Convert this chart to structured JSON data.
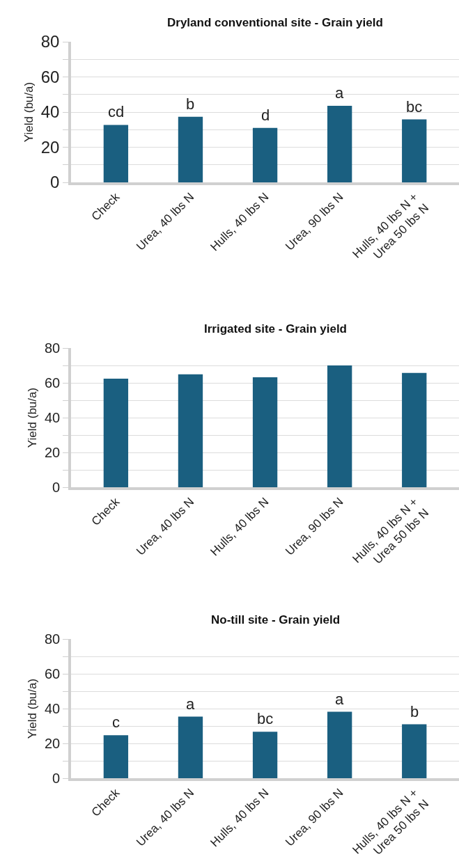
{
  "chart_data": [
    {
      "type": "bar",
      "title": "Dryland conventional site - Grain yield",
      "ylabel": "Yield (bu/a)",
      "categories": [
        "Check",
        "Urea, 40 lbs N",
        "Hulls, 40 lbs N",
        "Urea, 90 lbs N",
        "Hulls, 40 lbs N +\nUrea 50 lbs N"
      ],
      "values": [
        32.7,
        37.3,
        31,
        43.6,
        35.8
      ],
      "color": "#1a5f80",
      "ylim": [
        0,
        80
      ],
      "yticks": [
        0,
        {
          "value": 10,
          "label": null
        },
        20,
        {
          "value": 30,
          "label": null
        },
        40,
        {
          "value": 50,
          "label": null
        },
        60,
        {
          "value": 70,
          "label": null
        },
        80
      ],
      "grid": "y",
      "annotations": [
        {
          "text": "cd",
          "x": "Check",
          "y": 32.7
        },
        {
          "text": "b",
          "x": "Urea, 40 lbs N",
          "y": 37.3
        },
        {
          "text": "d",
          "x": "Hulls, 40 lbs N",
          "y": 31
        },
        {
          "text": "a",
          "x": "Urea, 90 lbs N",
          "y": 43.6
        },
        {
          "text": "bc",
          "x": "Hulls, 40 lbs N +\nUrea 50 lbs N",
          "y": 35.8
        }
      ]
    },
    {
      "type": "bar",
      "title": "Irrigated site - Grain yield",
      "ylabel": "Yield (bu/a)",
      "categories": [
        "Check",
        "Urea, 40 lbs N",
        "Hulls, 40 lbs N",
        "Urea, 90 lbs N",
        "Hulls, 40 lbs N +\nUrea 50 lbs N"
      ],
      "values": [
        62.4,
        64.9,
        63.2,
        70,
        65.7
      ],
      "color": "#1a5f80",
      "ylim": [
        0,
        80
      ],
      "yticks": [
        0,
        {
          "value": 10,
          "label": null
        },
        20,
        {
          "value": 30,
          "label": null
        },
        40,
        {
          "value": 50,
          "label": null
        },
        60,
        {
          "value": 70,
          "label": null
        },
        80
      ],
      "grid": "y"
    },
    {
      "type": "bar",
      "title": "No-till site - Grain yield",
      "ylabel": "Yield (bu/a)",
      "categories": [
        "Check",
        "Urea, 40 lbs N",
        "Hulls, 40 lbs N",
        "Urea, 90 lbs N",
        "Hulls, 40 lbs N +\nUrea 50 lbs N"
      ],
      "values": [
        24.7,
        35.4,
        26.7,
        38.2,
        31
      ],
      "color": "#1a5f80",
      "ylim": [
        0,
        80
      ],
      "yticks": [
        0,
        {
          "value": 10,
          "label": null
        },
        20,
        {
          "value": 30,
          "label": null
        },
        40,
        {
          "value": 50,
          "label": null
        },
        60,
        {
          "value": 70,
          "label": null
        },
        80
      ],
      "grid": "y",
      "annotations": [
        {
          "text": "c",
          "x": "Check",
          "y": 24.7
        },
        {
          "text": "a",
          "x": "Urea, 40 lbs N",
          "y": 35.4
        },
        {
          "text": "bc",
          "x": "Hulls, 40 lbs N",
          "y": 26.7
        },
        {
          "text": "a",
          "x": "Urea, 90 lbs N",
          "y": 38.2
        },
        {
          "text": "b",
          "x": "Hulls, 40 lbs N +\nUrea 50 lbs N",
          "y": 31
        }
      ]
    }
  ]
}
